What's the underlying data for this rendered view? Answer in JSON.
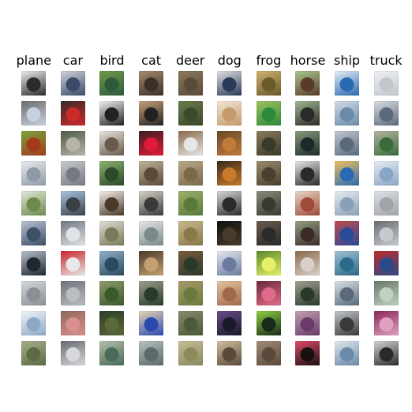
{
  "classes": [
    "plane",
    "car",
    "bird",
    "cat",
    "deer",
    "dog",
    "frog",
    "horse",
    "ship",
    "truck"
  ],
  "samples_per_class": 10,
  "thumb_palette": {
    "plane": [
      [
        "#2b2b2b",
        "#e9ecef"
      ],
      [
        "#c7d2e0",
        "#6c6c6c"
      ],
      [
        "#a33b1a",
        "#7aa33b"
      ],
      [
        "#8f9aa6",
        "#e6ebef"
      ],
      [
        "#6f8a4d",
        "#dfe7d6"
      ],
      [
        "#3e5068",
        "#b8c2d1"
      ],
      [
        "#1f2730",
        "#b7c1cc"
      ],
      [
        "#8a8f95",
        "#d3d7dc"
      ],
      [
        "#8ea9c7",
        "#f0f3f7"
      ],
      [
        "#5c6b44",
        "#a4b08a"
      ]
    ],
    "car": [
      [
        "#3a4a6a",
        "#d0d4da"
      ],
      [
        "#c92a2a",
        "#3a2a2a"
      ],
      [
        "#b7b4a6",
        "#4b5c44"
      ],
      [
        "#747a80",
        "#c6cbd0"
      ],
      [
        "#3a3f46",
        "#a8c6e1"
      ],
      [
        "#e0e3e6",
        "#6e7780"
      ],
      [
        "#e8e8ea",
        "#c9242a"
      ],
      [
        "#b9bcc1",
        "#6c737a"
      ],
      [
        "#d98f8f",
        "#8e6a5a"
      ],
      [
        "#d7d8da",
        "#666b72"
      ]
    ],
    "bird": [
      [
        "#2d5a3a",
        "#6f9a4a"
      ],
      [
        "#222",
        "#f0f0f0"
      ],
      [
        "#6a5a4a",
        "#e8e4e0"
      ],
      [
        "#2a4a2a",
        "#8bb06a"
      ],
      [
        "#4a3a2a",
        "#f5f0e6"
      ],
      [
        "#7a7a5a",
        "#dddcd2"
      ],
      [
        "#2a4a60",
        "#8fb0c8"
      ],
      [
        "#3a5a2a",
        "#8c9a6a"
      ],
      [
        "#5a6a3a",
        "#2e3d2a"
      ],
      [
        "#4a6a5a",
        "#b2c0a6"
      ]
    ],
    "cat": [
      [
        "#3a3028",
        "#a88a6a"
      ],
      [
        "#222",
        "#c9a07a"
      ],
      [
        "#e01a3a",
        "#3a2020"
      ],
      [
        "#5a4a3a",
        "#c0b49a"
      ],
      [
        "#3a3a3a",
        "#d8d2c8"
      ],
      [
        "#7a8a8a",
        "#e6e6e6"
      ],
      [
        "#c4a070",
        "#4a3a2a"
      ],
      [
        "#2a3a2a",
        "#9aa08a"
      ],
      [
        "#2a4ab0",
        "#e6d6b0"
      ],
      [
        "#5a6a6a",
        "#b8c0c0"
      ]
    ],
    "deer": [
      [
        "#5a4a3a",
        "#8a7a5a"
      ],
      [
        "#3a4a2a",
        "#6a7a4a"
      ],
      [
        "#e6e6e6",
        "#8a6a4a"
      ],
      [
        "#7a6a4a",
        "#b9a98a"
      ],
      [
        "#5a7a3a",
        "#9ab06a"
      ],
      [
        "#8a7a4a",
        "#c6b88a"
      ],
      [
        "#2a3a2a",
        "#7a5a3a"
      ],
      [
        "#6a7a3a",
        "#a89a6a"
      ],
      [
        "#4a5a3a",
        "#8a8a6a"
      ],
      [
        "#8a8a5a",
        "#c4bc9a"
      ]
    ],
    "dog": [
      [
        "#2a3a5a",
        "#e0e0e0"
      ],
      [
        "#c69a6a",
        "#f0e6d6"
      ],
      [
        "#c07a3a",
        "#6a4a2a"
      ],
      [
        "#c97a2a",
        "#3a2a1a"
      ],
      [
        "#2a2a2a",
        "#d8d8d8"
      ],
      [
        "#4a3a2a",
        "#111111"
      ],
      [
        "#6a7aa0",
        "#e6e8ee"
      ],
      [
        "#a06a4a",
        "#e2c2a0"
      ],
      [
        "#1a1a2a",
        "#6a4a8a"
      ],
      [
        "#5a4a3a",
        "#d0c0a0"
      ]
    ],
    "frog": [
      [
        "#6a5a2a",
        "#d0b070"
      ],
      [
        "#2a8a3a",
        "#a0c060"
      ],
      [
        "#3a3a2a",
        "#8a7a5a"
      ],
      [
        "#4a4030",
        "#9a8a6a"
      ],
      [
        "#3a3a30",
        "#8a8a7a"
      ],
      [
        "#2a2a2a",
        "#6a5a4a"
      ],
      [
        "#e6f06a",
        "#5a8a2a"
      ],
      [
        "#e06a8a",
        "#6a2a3a"
      ],
      [
        "#1a2a1a",
        "#8ad040"
      ],
      [
        "#5a4a3a",
        "#a08a7a"
      ]
    ],
    "horse": [
      [
        "#5a3a2a",
        "#a8c890"
      ],
      [
        "#2a2a2a",
        "#a0b890"
      ],
      [
        "#1a2a2a",
        "#8a9a7a"
      ],
      [
        "#2a2a2a",
        "#e6e6e6"
      ],
      [
        "#a04a3a",
        "#e6d6c6"
      ],
      [
        "#3a2a2a",
        "#90a080"
      ],
      [
        "#d8d0c8",
        "#8a6a4a"
      ],
      [
        "#2a3a2a",
        "#a0a090"
      ],
      [
        "#6a3a6a",
        "#c0a0b0"
      ],
      [
        "#1a1010",
        "#e04a6a"
      ]
    ],
    "ship": [
      [
        "#2a6ab0",
        "#e6eef6"
      ],
      [
        "#6a8aaa",
        "#d0dce6"
      ],
      [
        "#5a6a7a",
        "#c0c8d0"
      ],
      [
        "#2a6ab0",
        "#f0c060"
      ],
      [
        "#8aa0b8",
        "#e6ecf2"
      ],
      [
        "#2a4a9a",
        "#c04a4a"
      ],
      [
        "#2a6a8a",
        "#a0c0d0"
      ],
      [
        "#5a6a7a",
        "#d8e0e6"
      ],
      [
        "#3a3a3a",
        "#c0c6cc"
      ],
      [
        "#6a8aaa",
        "#e0e6ec"
      ]
    ],
    "truck": [
      [
        "#c0c6cc",
        "#f0f2f4"
      ],
      [
        "#5a6a7a",
        "#d8dde2"
      ],
      [
        "#3a6a3a",
        "#b0b4a0"
      ],
      [
        "#8aa6c6",
        "#e6ecf2"
      ],
      [
        "#a0a4a8",
        "#dde0e4"
      ],
      [
        "#c6cacf",
        "#6a6e72"
      ],
      [
        "#2a4a8a",
        "#c02a2a"
      ],
      [
        "#c0d0c0",
        "#6a7a6a"
      ],
      [
        "#e0a0c0",
        "#8a2a5a"
      ],
      [
        "#2a2a2a",
        "#d0d4d8"
      ]
    ]
  }
}
